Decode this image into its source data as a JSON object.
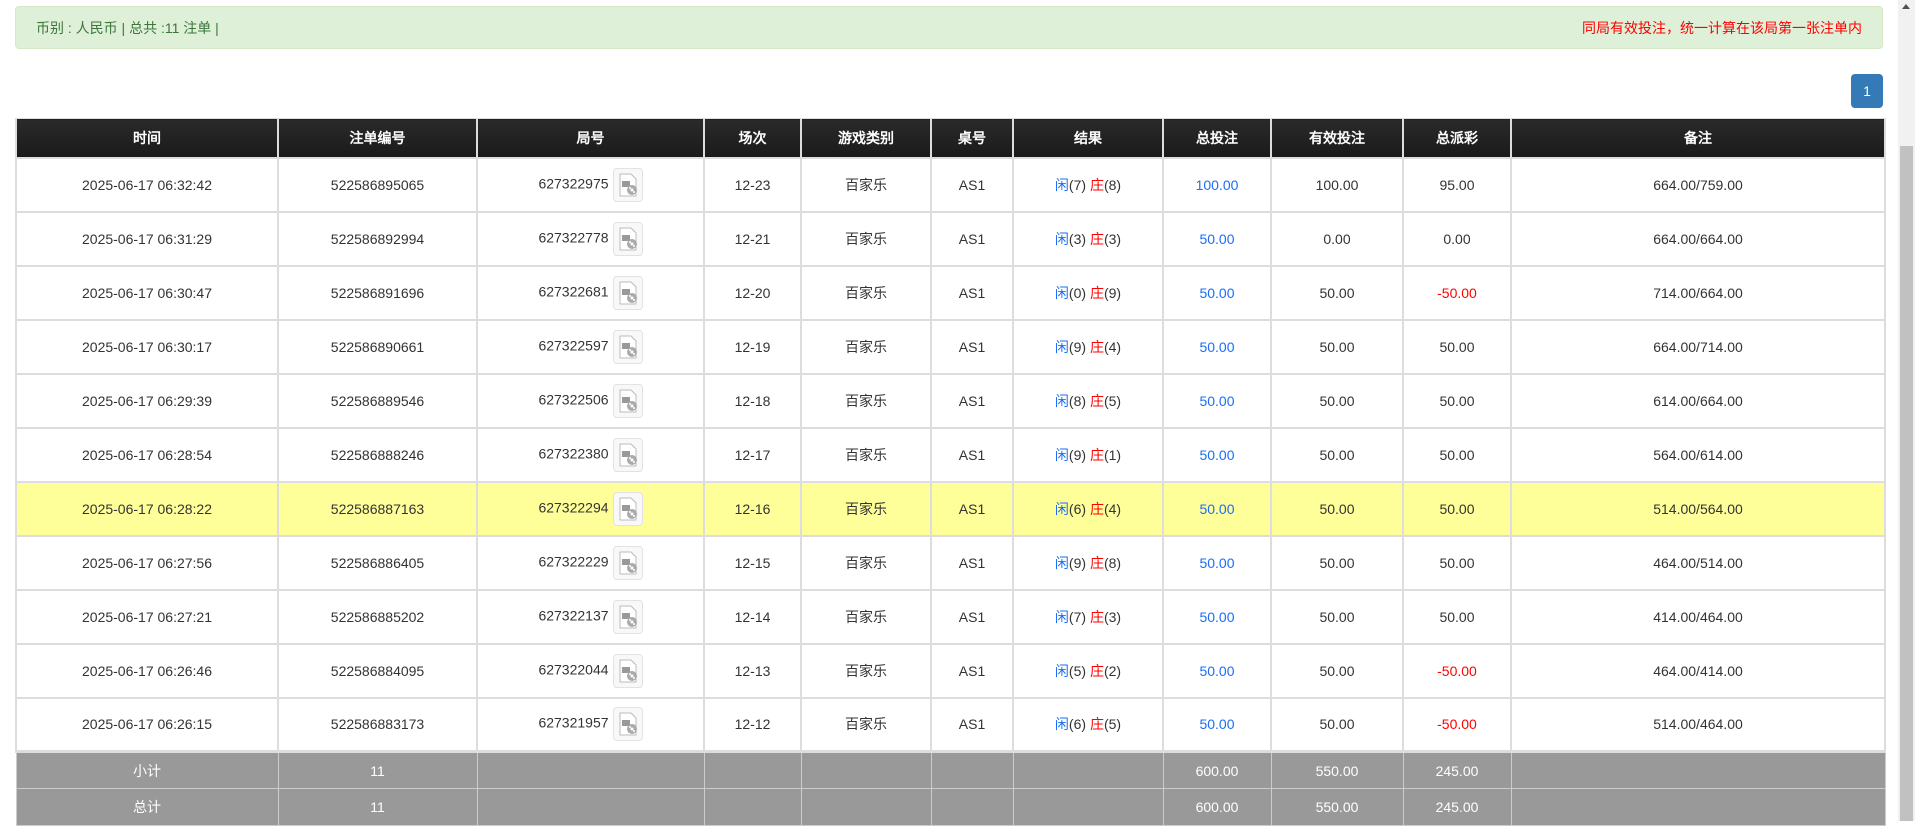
{
  "summary": {
    "left": "币别 : 人民币 | 总共 :11 注单 |",
    "right": "同局有效投注，统一计算在该局第一张注单内"
  },
  "pagination": {
    "current": "1"
  },
  "columns": [
    "时间",
    "注单编号",
    "局号",
    "场次",
    "游戏类别",
    "桌号",
    "结果",
    "总投注",
    "有效投注",
    "总派彩",
    "备注"
  ],
  "result_labels": {
    "player": "闲",
    "banker": "庄"
  },
  "colors": {
    "player": "#1a6ef5",
    "banker": "#ff0000",
    "negative": "#ff0000",
    "highlight": "#ffff99",
    "header": "#1c1c1c",
    "footer": "#999999",
    "alert_bg": "#dff0d8",
    "page_button": "#337ab7"
  },
  "rows": [
    {
      "time": "2025-06-17 06:32:42",
      "bet_id": "522586895065",
      "round": "627322975",
      "shoe": "12-23",
      "game": "百家乐",
      "table": "AS1",
      "player": "(7)",
      "banker": "(8)",
      "total_bet": "100.00",
      "valid_bet": "100.00",
      "payout": "95.00",
      "note": "664.00/759.00"
    },
    {
      "time": "2025-06-17 06:31:29",
      "bet_id": "522586892994",
      "round": "627322778",
      "shoe": "12-21",
      "game": "百家乐",
      "table": "AS1",
      "player": "(3)",
      "banker": "(3)",
      "total_bet": "50.00",
      "valid_bet": "0.00",
      "payout": "0.00",
      "note": "664.00/664.00"
    },
    {
      "time": "2025-06-17 06:30:47",
      "bet_id": "522586891696",
      "round": "627322681",
      "shoe": "12-20",
      "game": "百家乐",
      "table": "AS1",
      "player": "(0)",
      "banker": "(9)",
      "total_bet": "50.00",
      "valid_bet": "50.00",
      "payout": "-50.00",
      "note": "714.00/664.00"
    },
    {
      "time": "2025-06-17 06:30:17",
      "bet_id": "522586890661",
      "round": "627322597",
      "shoe": "12-19",
      "game": "百家乐",
      "table": "AS1",
      "player": "(9)",
      "banker": "(4)",
      "total_bet": "50.00",
      "valid_bet": "50.00",
      "payout": "50.00",
      "note": "664.00/714.00"
    },
    {
      "time": "2025-06-17 06:29:39",
      "bet_id": "522586889546",
      "round": "627322506",
      "shoe": "12-18",
      "game": "百家乐",
      "table": "AS1",
      "player": "(8)",
      "banker": "(5)",
      "total_bet": "50.00",
      "valid_bet": "50.00",
      "payout": "50.00",
      "note": "614.00/664.00"
    },
    {
      "time": "2025-06-17 06:28:54",
      "bet_id": "522586888246",
      "round": "627322380",
      "shoe": "12-17",
      "game": "百家乐",
      "table": "AS1",
      "player": "(9)",
      "banker": "(1)",
      "total_bet": "50.00",
      "valid_bet": "50.00",
      "payout": "50.00",
      "note": "564.00/614.00"
    },
    {
      "time": "2025-06-17 06:28:22",
      "bet_id": "522586887163",
      "round": "627322294",
      "shoe": "12-16",
      "game": "百家乐",
      "table": "AS1",
      "player": "(6)",
      "banker": "(4)",
      "total_bet": "50.00",
      "valid_bet": "50.00",
      "payout": "50.00",
      "note": "514.00/564.00",
      "highlight": true
    },
    {
      "time": "2025-06-17 06:27:56",
      "bet_id": "522586886405",
      "round": "627322229",
      "shoe": "12-15",
      "game": "百家乐",
      "table": "AS1",
      "player": "(9)",
      "banker": "(8)",
      "total_bet": "50.00",
      "valid_bet": "50.00",
      "payout": "50.00",
      "note": "464.00/514.00"
    },
    {
      "time": "2025-06-17 06:27:21",
      "bet_id": "522586885202",
      "round": "627322137",
      "shoe": "12-14",
      "game": "百家乐",
      "table": "AS1",
      "player": "(7)",
      "banker": "(3)",
      "total_bet": "50.00",
      "valid_bet": "50.00",
      "payout": "50.00",
      "note": "414.00/464.00"
    },
    {
      "time": "2025-06-17 06:26:46",
      "bet_id": "522586884095",
      "round": "627322044",
      "shoe": "12-13",
      "game": "百家乐",
      "table": "AS1",
      "player": "(5)",
      "banker": "(2)",
      "total_bet": "50.00",
      "valid_bet": "50.00",
      "payout": "-50.00",
      "note": "464.00/414.00"
    },
    {
      "time": "2025-06-17 06:26:15",
      "bet_id": "522586883173",
      "round": "627321957",
      "shoe": "12-12",
      "game": "百家乐",
      "table": "AS1",
      "player": "(6)",
      "banker": "(5)",
      "total_bet": "50.00",
      "valid_bet": "50.00",
      "payout": "-50.00",
      "note": "514.00/464.00"
    }
  ],
  "subtotal": {
    "label": "小计",
    "count": "11",
    "total_bet": "600.00",
    "valid_bet": "550.00",
    "payout": "245.00"
  },
  "total": {
    "label": "总计",
    "count": "11",
    "total_bet": "600.00",
    "valid_bet": "550.00",
    "payout": "245.00"
  },
  "icons": {
    "video": "video-replay-icon"
  }
}
